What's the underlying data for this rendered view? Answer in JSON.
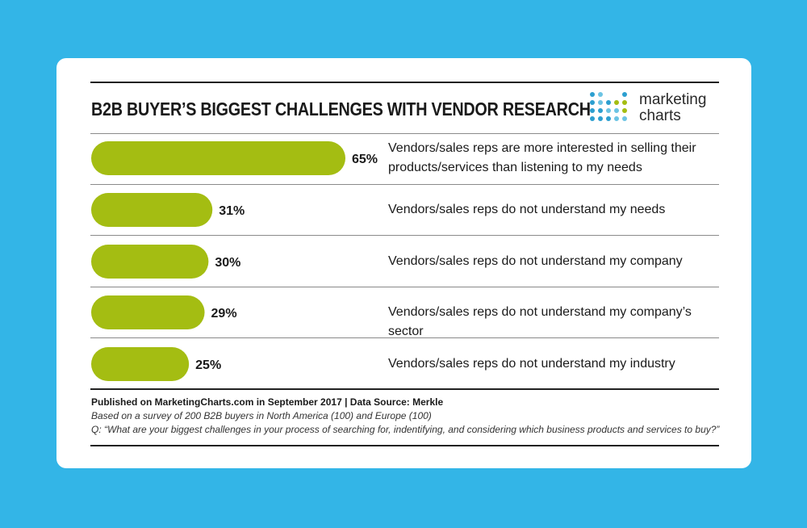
{
  "title": "B2B BUYER’S BIGGEST CHALLENGES WITH VENDOR RESEARCH",
  "logo": {
    "line1": "marketing",
    "line2": "charts"
  },
  "chart_data": {
    "type": "bar",
    "orientation": "horizontal",
    "categories": [
      "Vendors/sales reps are more interested in selling their products/services than listening to my needs",
      "Vendors/sales reps do not understand my needs",
      "Vendors/sales reps do not understand my company",
      "Vendors/sales reps do not understand my company’s sector",
      "Vendors/sales reps do not understand my industry"
    ],
    "values": [
      65,
      31,
      30,
      29,
      25
    ],
    "value_labels": [
      "65%",
      "31%",
      "30%",
      "29%",
      "25%"
    ],
    "unit": "%",
    "bar_color": "#a4bd12",
    "xlim": [
      0,
      100
    ],
    "grid": false,
    "legend": "none"
  },
  "footer": {
    "published": "Published on MarketingCharts.com in September 2017  |  Data Source: Merkle",
    "survey": "Based on a survey of 200 B2B buyers in North America (100) and Europe (100)",
    "question": "Q: “What are your biggest challenges in your process of searching for, indentifying, and considering which business products and services to buy?”"
  }
}
